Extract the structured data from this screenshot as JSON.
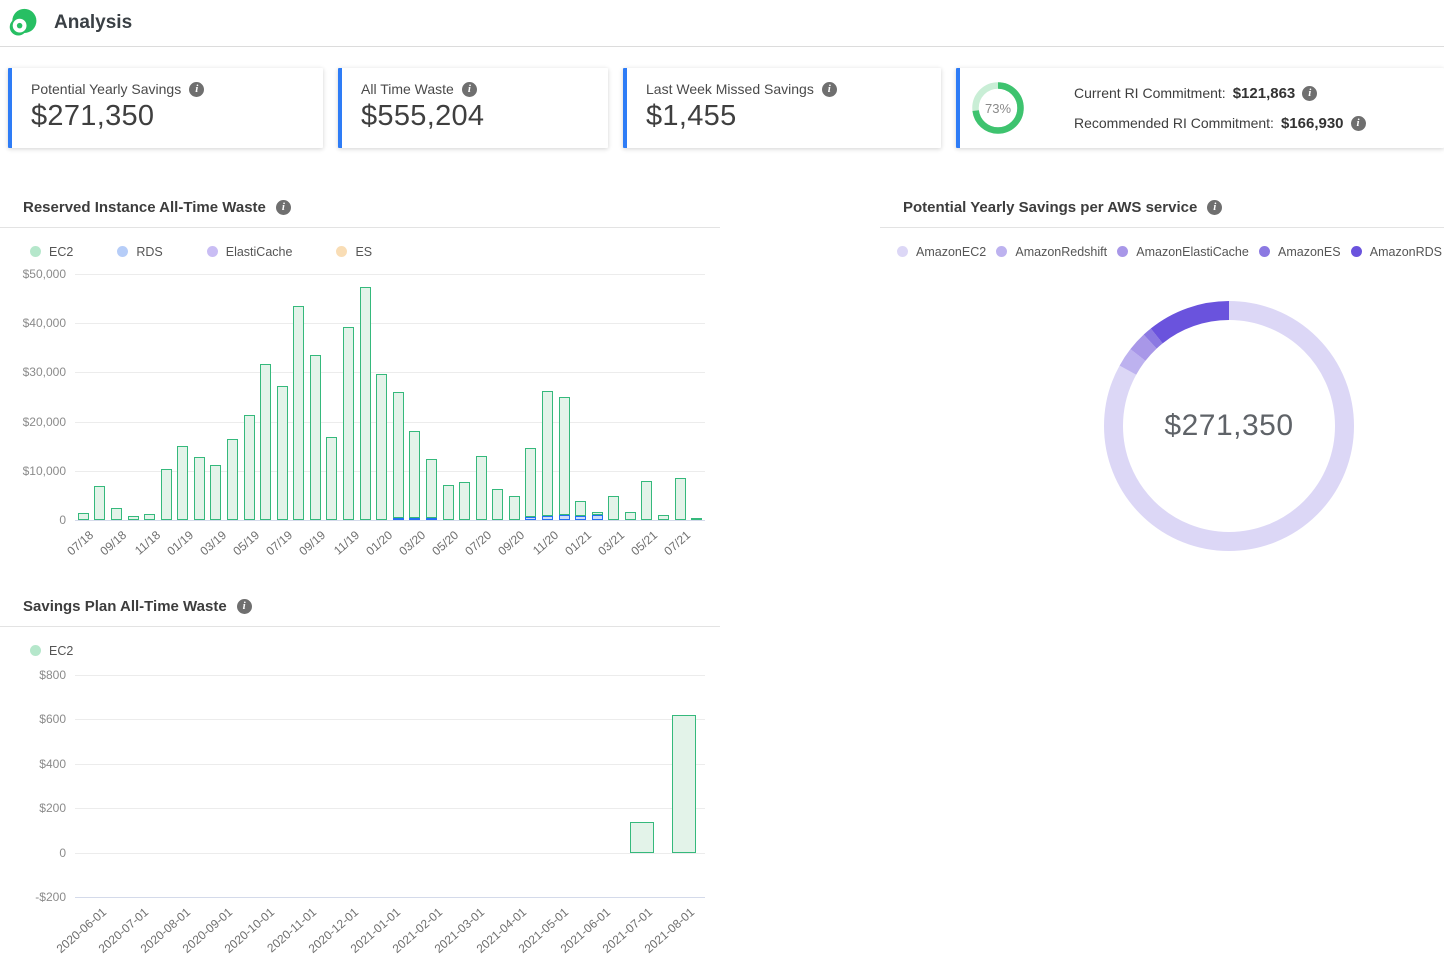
{
  "header": {
    "title": "Analysis",
    "logo": "eco-spot-logo"
  },
  "icons": {
    "info": "i"
  },
  "cards": [
    {
      "label": "Potential Yearly Savings",
      "value": "$271,350"
    },
    {
      "label": "All Time Waste",
      "value": "$555,204"
    },
    {
      "label": "Last Week Missed Savings",
      "value": "$1,455"
    }
  ],
  "commitment_card": {
    "percent_label": "73%",
    "gauge_pct": 73,
    "gauge_color": "#3ec36f",
    "gauge_track_color": "#c9eed6",
    "rows": [
      {
        "label": "Current RI Commitment:",
        "value": "$121,863"
      },
      {
        "label": "Recommended RI Commitment:",
        "value": "$166,930"
      }
    ]
  },
  "colors": {
    "card_accent": "#2e7cf6"
  },
  "chart_data": [
    {
      "id": "ri_waste",
      "type": "bar",
      "stacked": true,
      "title": "Reserved Instance All-Time Waste",
      "ylim": [
        0,
        50000
      ],
      "yticks": [
        "$50,000",
        "$40,000",
        "$30,000",
        "$20,000",
        "$10,000",
        "0"
      ],
      "tick_every": 2,
      "legend": [
        {
          "label": "EC2",
          "dot": "#b5e7cb"
        },
        {
          "label": "RDS",
          "dot": "#b6cdf8"
        },
        {
          "label": "ElastiCache",
          "dot": "#c9bdf4"
        },
        {
          "label": "ES",
          "dot": "#f9ddb5"
        }
      ],
      "legend_only_series": [
        "ElastiCache",
        "ES"
      ],
      "categories": [
        "07/18",
        "08/18",
        "09/18",
        "10/18",
        "11/18",
        "12/18",
        "01/19",
        "02/19",
        "03/19",
        "04/19",
        "05/19",
        "06/19",
        "07/19",
        "08/19",
        "09/19",
        "10/19",
        "11/19",
        "12/19",
        "01/20",
        "02/20",
        "03/20",
        "04/20",
        "05/20",
        "06/20",
        "07/20",
        "08/20",
        "09/20",
        "10/20",
        "11/20",
        "12/20",
        "01/21",
        "02/21",
        "03/21",
        "04/21",
        "05/21",
        "06/21",
        "07/21",
        "08/21"
      ],
      "series": [
        {
          "name": "EC2",
          "fill": "#e3f3e9",
          "border": "#35b97c",
          "values": [
            1500,
            6900,
            2400,
            900,
            1300,
            10300,
            15100,
            12900,
            11200,
            16400,
            21300,
            31700,
            27200,
            43400,
            33600,
            16800,
            39300,
            47400,
            29700,
            25500,
            17600,
            12000,
            7200,
            7800,
            13000,
            6300,
            4800,
            13900,
            25300,
            24000,
            3000,
            600,
            4800,
            1600,
            7900,
            1000,
            8600,
            400
          ]
        },
        {
          "name": "RDS",
          "fill": "#cfdcf7",
          "border": "#2470f2",
          "values": [
            0,
            0,
            0,
            0,
            0,
            0,
            0,
            0,
            0,
            0,
            0,
            0,
            0,
            0,
            0,
            0,
            0,
            0,
            0,
            500,
            400,
            450,
            0,
            0,
            0,
            0,
            0,
            700,
            900,
            1000,
            900,
            1000,
            0,
            0,
            0,
            0,
            0,
            0
          ]
        }
      ]
    },
    {
      "id": "savings_donut",
      "type": "pie",
      "title": "Potential Yearly Savings per AWS service",
      "center_label": "$271,350",
      "legend_position": "top",
      "slices": [
        {
          "label": "AmazonEC2",
          "pct": 83.0,
          "color": "#dcd7f6"
        },
        {
          "label": "AmazonRedshift",
          "pct": 2.5,
          "color": "#bdb2ef"
        },
        {
          "label": "AmazonElastiCache",
          "pct": 2.5,
          "color": "#a897e8"
        },
        {
          "label": "AmazonES",
          "pct": 1.2,
          "color": "#8b79e2"
        },
        {
          "label": "AmazonRDS",
          "pct": 10.8,
          "color": "#6a53dd"
        }
      ]
    },
    {
      "id": "sp_waste",
      "type": "bar",
      "stacked": false,
      "title": "Savings Plan All-Time Waste",
      "ylim": [
        -200,
        800
      ],
      "yticks": [
        "$800",
        "$600",
        "$400",
        "$200",
        "0",
        "-$200"
      ],
      "tick_every": 1,
      "legend": [
        {
          "label": "EC2",
          "dot": "#b5e7cb"
        }
      ],
      "categories": [
        "2020-06-01",
        "2020-07-01",
        "2020-08-01",
        "2020-09-01",
        "2020-10-01",
        "2020-11-01",
        "2020-12-01",
        "2021-01-01",
        "2021-02-01",
        "2021-03-01",
        "2021-04-01",
        "2021-05-01",
        "2021-06-01",
        "2021-07-01",
        "2021-08-01"
      ],
      "series": [
        {
          "name": "EC2",
          "fill": "#e3f3e9",
          "border": "#35b97c",
          "values": [
            0,
            0,
            0,
            0,
            0,
            0,
            0,
            0,
            0,
            0,
            0,
            0,
            0,
            140,
            620
          ]
        }
      ]
    }
  ]
}
